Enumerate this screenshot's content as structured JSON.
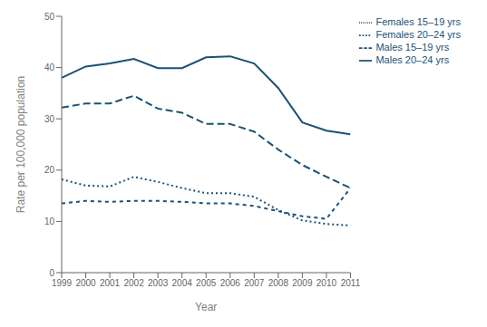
{
  "chart_data": {
    "type": "line",
    "xlabel": "Year",
    "ylabel": "Rate per 100,000 population",
    "x": [
      1999,
      2000,
      2001,
      2002,
      2003,
      2004,
      2005,
      2006,
      2007,
      2008,
      2009,
      2010,
      2011
    ],
    "xlim": [
      1999,
      2011
    ],
    "xticks": [
      1999,
      2000,
      2001,
      2002,
      2003,
      2004,
      2005,
      2006,
      2007,
      2008,
      2009,
      2010,
      2011
    ],
    "ylim": [
      0,
      50
    ],
    "yticks": [
      0,
      10,
      20,
      30,
      40,
      50
    ],
    "grid": false,
    "legend": "upper right",
    "series": [
      {
        "name": "Males 20–24 yrs",
        "color": "#1a5276",
        "line_style": "solid",
        "values": [
          38.0,
          40.2,
          40.8,
          41.7,
          39.9,
          39.9,
          42.0,
          42.2,
          40.8,
          36.0,
          29.3,
          27.7,
          27.0
        ]
      },
      {
        "name": "Males 15–19 yrs",
        "color": "#1a5276",
        "line_style": "long_dash",
        "values": [
          32.2,
          33.0,
          33.0,
          34.5,
          32.0,
          31.2,
          29.0,
          29.0,
          27.5,
          24.0,
          21.0,
          18.7,
          16.5
        ]
      },
      {
        "name": "Females 15–19 yrs",
        "color": "#1a5276",
        "line_style": "dotted",
        "values": [
          18.2,
          17.0,
          16.8,
          18.7,
          17.7,
          16.5,
          15.5,
          15.5,
          14.8,
          12.2,
          10.2,
          9.5,
          9.2
        ]
      },
      {
        "name": "Females 20–24 yrs",
        "color": "#1a5276",
        "line_style": "dashed",
        "values": [
          13.5,
          14.0,
          13.8,
          14.0,
          14.0,
          13.8,
          13.5,
          13.5,
          13.0,
          12.0,
          11.0,
          10.5,
          16.5
        ]
      }
    ]
  }
}
